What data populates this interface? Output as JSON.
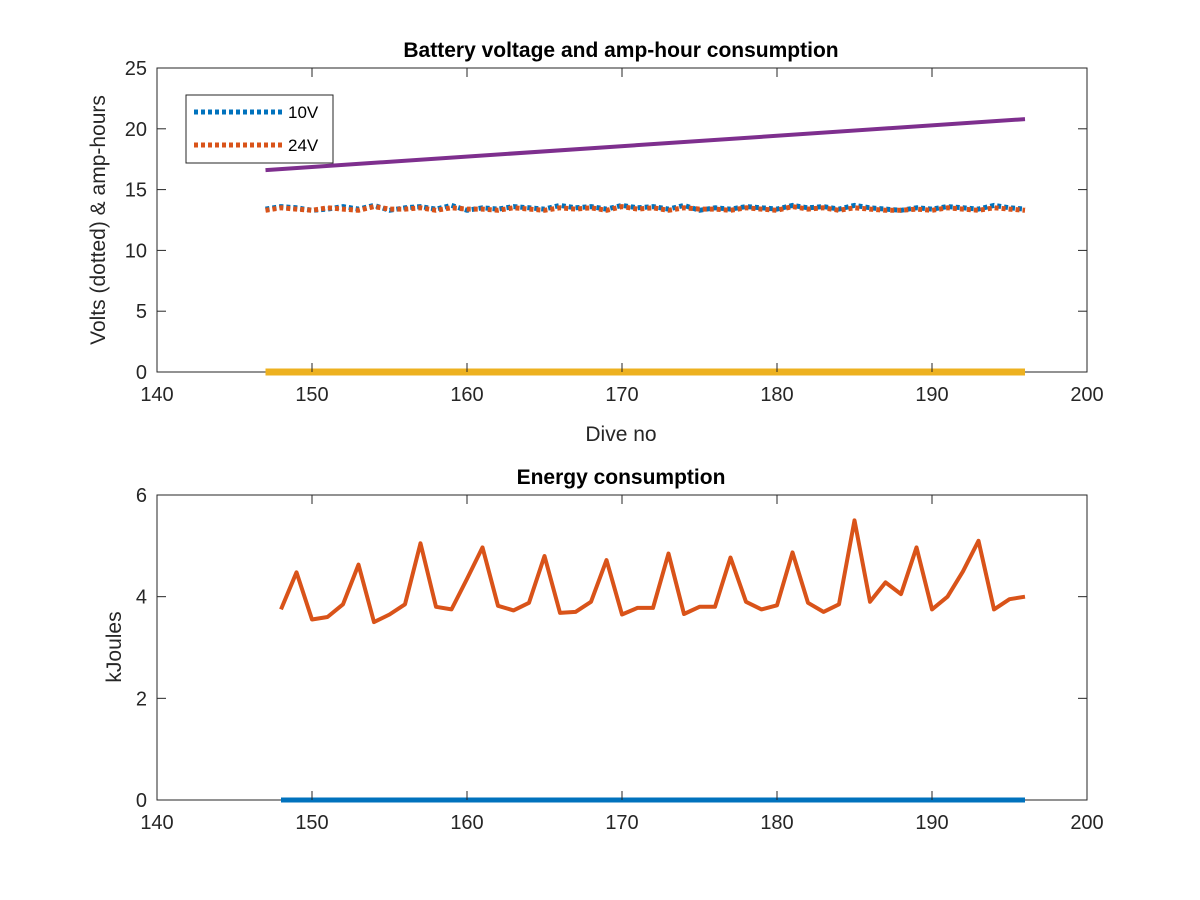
{
  "chart_data": [
    {
      "type": "line",
      "title": "Battery voltage and amp-hour consumption",
      "xlabel": "Dive no",
      "ylabel": "Volts (dotted) & amp-hours",
      "xlim": [
        140,
        200
      ],
      "ylim": [
        0,
        25
      ],
      "xticks": [
        "140",
        "150",
        "160",
        "170",
        "180",
        "190",
        "200"
      ],
      "yticks": [
        "0",
        "5",
        "10",
        "15",
        "20",
        "25"
      ],
      "legend_position": "top-left",
      "grid": false,
      "colors": {
        "10V": "#0072BD",
        "24V": "#D95319",
        "amp_hours": "#7E2F8E",
        "baseline": "#EDB120"
      },
      "series": [
        {
          "name": "10V",
          "style": "dotted",
          "x": [
            147,
            148,
            149,
            150,
            151,
            152,
            153,
            154,
            155,
            156,
            157,
            158,
            159,
            160,
            161,
            162,
            163,
            164,
            165,
            166,
            167,
            168,
            169,
            170,
            171,
            172,
            173,
            174,
            175,
            176,
            177,
            178,
            179,
            180,
            181,
            182,
            183,
            184,
            185,
            186,
            187,
            188,
            189,
            190,
            191,
            192,
            193,
            194,
            195,
            196
          ],
          "values": [
            13.4,
            13.6,
            13.5,
            13.3,
            13.4,
            13.6,
            13.4,
            13.7,
            13.3,
            13.5,
            13.6,
            13.4,
            13.7,
            13.3,
            13.5,
            13.4,
            13.6,
            13.5,
            13.4,
            13.7,
            13.5,
            13.6,
            13.4,
            13.7,
            13.5,
            13.6,
            13.4,
            13.7,
            13.3,
            13.5,
            13.4,
            13.6,
            13.5,
            13.4,
            13.7,
            13.5,
            13.6,
            13.4,
            13.7,
            13.5,
            13.4,
            13.3,
            13.5,
            13.4,
            13.6,
            13.5,
            13.4,
            13.7,
            13.5,
            13.4
          ]
        },
        {
          "name": "24V",
          "style": "dotted",
          "x": [
            147,
            148,
            149,
            150,
            151,
            152,
            153,
            154,
            155,
            156,
            157,
            158,
            159,
            160,
            161,
            162,
            163,
            164,
            165,
            166,
            167,
            168,
            169,
            170,
            171,
            172,
            173,
            174,
            175,
            176,
            177,
            178,
            179,
            180,
            181,
            182,
            183,
            184,
            185,
            186,
            187,
            188,
            189,
            190,
            191,
            192,
            193,
            194,
            195,
            196
          ],
          "values": [
            13.3,
            13.5,
            13.4,
            13.3,
            13.5,
            13.4,
            13.3,
            13.6,
            13.4,
            13.4,
            13.5,
            13.3,
            13.5,
            13.4,
            13.4,
            13.3,
            13.5,
            13.4,
            13.3,
            13.5,
            13.4,
            13.5,
            13.3,
            13.6,
            13.4,
            13.5,
            13.3,
            13.5,
            13.4,
            13.4,
            13.3,
            13.5,
            13.4,
            13.3,
            13.6,
            13.4,
            13.5,
            13.3,
            13.5,
            13.4,
            13.3,
            13.3,
            13.4,
            13.3,
            13.5,
            13.4,
            13.3,
            13.5,
            13.4,
            13.3
          ]
        },
        {
          "style": "solid",
          "x": [
            147,
            196
          ],
          "values": [
            16.6,
            20.8
          ]
        },
        {
          "style": "solid",
          "x": [
            147,
            196
          ],
          "values": [
            0,
            0
          ]
        }
      ]
    },
    {
      "type": "line",
      "title": "Energy consumption",
      "xlabel": "",
      "ylabel": "kJoules",
      "xlim": [
        140,
        200
      ],
      "ylim": [
        0,
        6
      ],
      "xticks": [
        "140",
        "150",
        "160",
        "170",
        "180",
        "190",
        "200"
      ],
      "yticks": [
        "0",
        "2",
        "4",
        "6"
      ],
      "grid": false,
      "colors": {
        "energy": "#D95319",
        "baseline": "#0072BD"
      },
      "series": [
        {
          "style": "solid",
          "x": [
            148,
            149,
            150,
            151,
            152,
            153,
            154,
            155,
            156,
            157,
            158,
            159,
            160,
            161,
            162,
            163,
            164,
            165,
            166,
            167,
            168,
            169,
            170,
            171,
            172,
            173,
            174,
            175,
            176,
            177,
            178,
            179,
            180,
            181,
            182,
            183,
            184,
            185,
            186,
            187,
            188,
            189,
            190,
            191,
            192,
            193,
            194,
            195,
            196
          ],
          "values": [
            3.75,
            4.48,
            3.55,
            3.6,
            3.85,
            4.63,
            3.5,
            3.65,
            3.85,
            5.05,
            3.8,
            3.75,
            4.35,
            4.97,
            3.82,
            3.73,
            3.88,
            4.8,
            3.68,
            3.7,
            3.9,
            4.72,
            3.65,
            3.78,
            3.78,
            4.85,
            3.66,
            3.8,
            3.8,
            4.77,
            3.9,
            3.75,
            3.83,
            4.87,
            3.88,
            3.7,
            3.85,
            5.5,
            3.9,
            4.28,
            4.05,
            4.97,
            3.75,
            4.0,
            4.5,
            5.1,
            3.75,
            3.95,
            4.0
          ]
        },
        {
          "style": "solid",
          "x": [
            148,
            196
          ],
          "values": [
            0,
            0
          ]
        }
      ]
    }
  ]
}
